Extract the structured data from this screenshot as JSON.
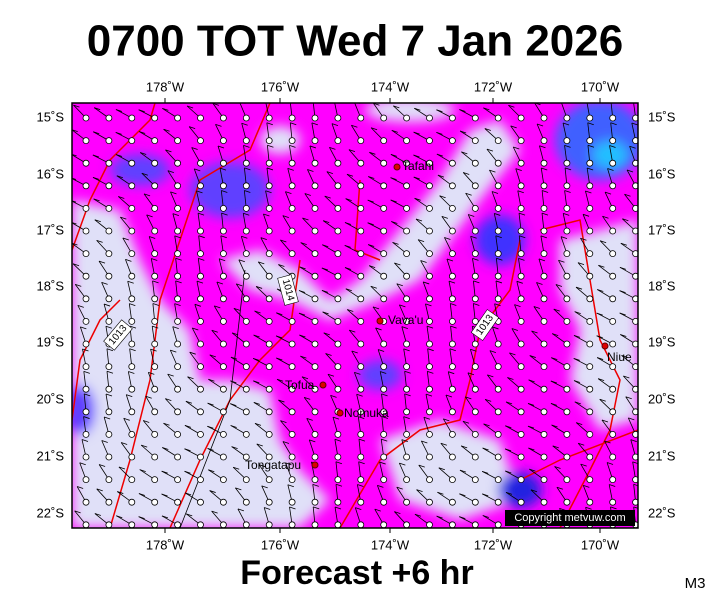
{
  "header": {
    "title": "0700 TOT Wed 7 Jan 2026"
  },
  "footer": {
    "forecast": "Forecast +6 hr",
    "code": "M3"
  },
  "map": {
    "lon_labels": [
      "178˚W",
      "176˚W",
      "174˚W",
      "172˚W",
      "170˚W"
    ],
    "lat_labels": [
      "15˚S",
      "16˚S",
      "17˚S",
      "18˚S",
      "19˚S",
      "20˚S",
      "21˚S",
      "22˚S"
    ],
    "places": [
      "Tafahi",
      "Vava'u",
      "Niue",
      "Tofua",
      "Nomuka",
      "Tongatapu"
    ],
    "isobar_labels": [
      "1014",
      "1013",
      "1013"
    ],
    "copyright": "Copyright metvuw.com"
  }
}
